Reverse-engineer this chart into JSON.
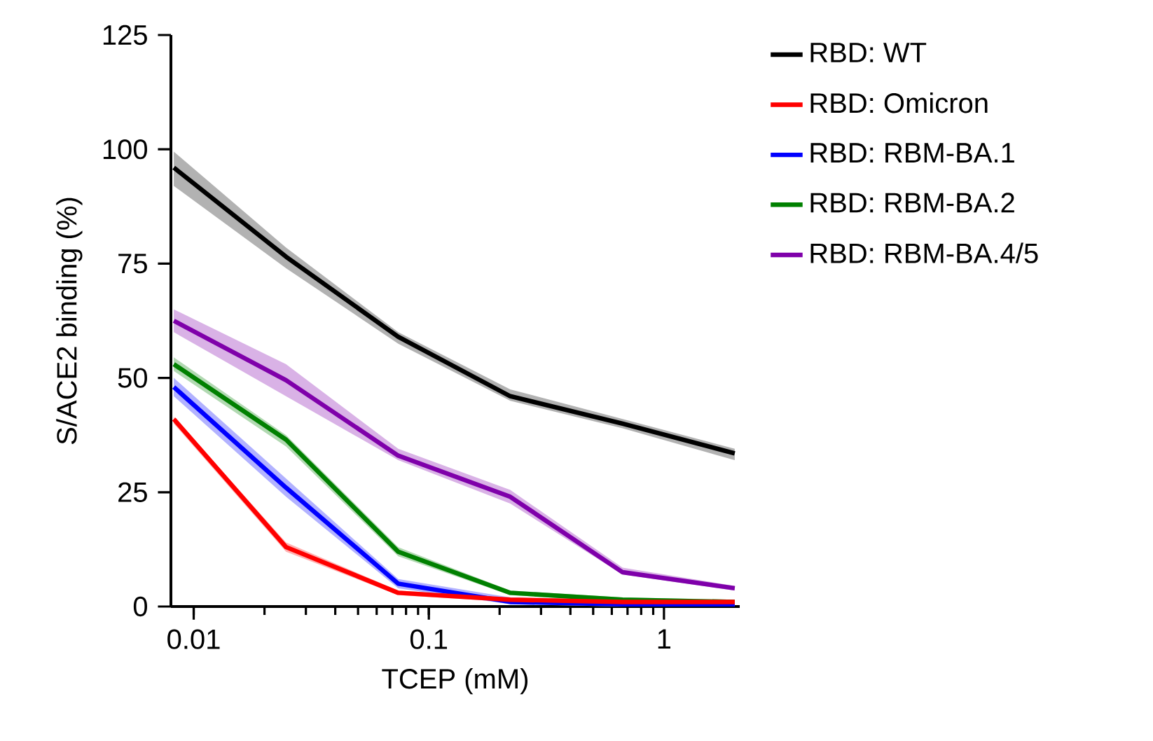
{
  "chart_data": {
    "type": "line",
    "xlabel": "TCEP (mM)",
    "ylabel": "S/ACE2 binding (%)",
    "log": "x",
    "x": [
      0.00823,
      0.0247,
      0.0741,
      0.222,
      0.667,
      2
    ],
    "xlim": [
      0.008,
      2.1
    ],
    "xticks": [
      0.01,
      0.1,
      1
    ],
    "ylim": [
      0,
      125
    ],
    "yticks": [
      0,
      25,
      50,
      75,
      100,
      125
    ],
    "legend": "right",
    "grid": false,
    "marker": "none",
    "line_style": "solid",
    "series": [
      {
        "name": "RBD: WT",
        "color": "#000000",
        "values": [
          96,
          76.5,
          59,
          46,
          40,
          33.5
        ],
        "lower": [
          92,
          74,
          57.5,
          45,
          39,
          32
        ],
        "upper": [
          99.5,
          78.5,
          60,
          47.5,
          41,
          34.5
        ]
      },
      {
        "name": "RBD: Omicron",
        "color": "#ff0000",
        "values": [
          41,
          13,
          3,
          1.5,
          1,
          1
        ],
        "lower": [
          40,
          12,
          2.5,
          1,
          0.5,
          0.5
        ],
        "upper": [
          41.5,
          14,
          3.5,
          2,
          1.5,
          1.5
        ]
      },
      {
        "name": "RBD: RBM-BA.1",
        "color": "#0000ff",
        "values": [
          48,
          26,
          5,
          1,
          0.5,
          0.5
        ],
        "lower": [
          46,
          24,
          4,
          0.5,
          0,
          0
        ],
        "upper": [
          50,
          28,
          6,
          2,
          1,
          1
        ]
      },
      {
        "name": "RBD: RBM-BA.2",
        "color": "#008000",
        "values": [
          53,
          36.5,
          12,
          3,
          1.5,
          1
        ],
        "lower": [
          51.5,
          35,
          11,
          2.5,
          1,
          0.5
        ],
        "upper": [
          54.5,
          37.5,
          13,
          3.5,
          2,
          1.5
        ]
      },
      {
        "name": "RBD: RBM-BA.4/5",
        "color": "#7f00aa",
        "values": [
          62.5,
          49.5,
          33,
          24,
          7.5,
          4
        ],
        "lower": [
          60,
          46,
          32,
          22.5,
          7,
          3.5
        ],
        "upper": [
          65,
          53,
          34.5,
          25.5,
          8.5,
          4.5
        ]
      }
    ]
  }
}
